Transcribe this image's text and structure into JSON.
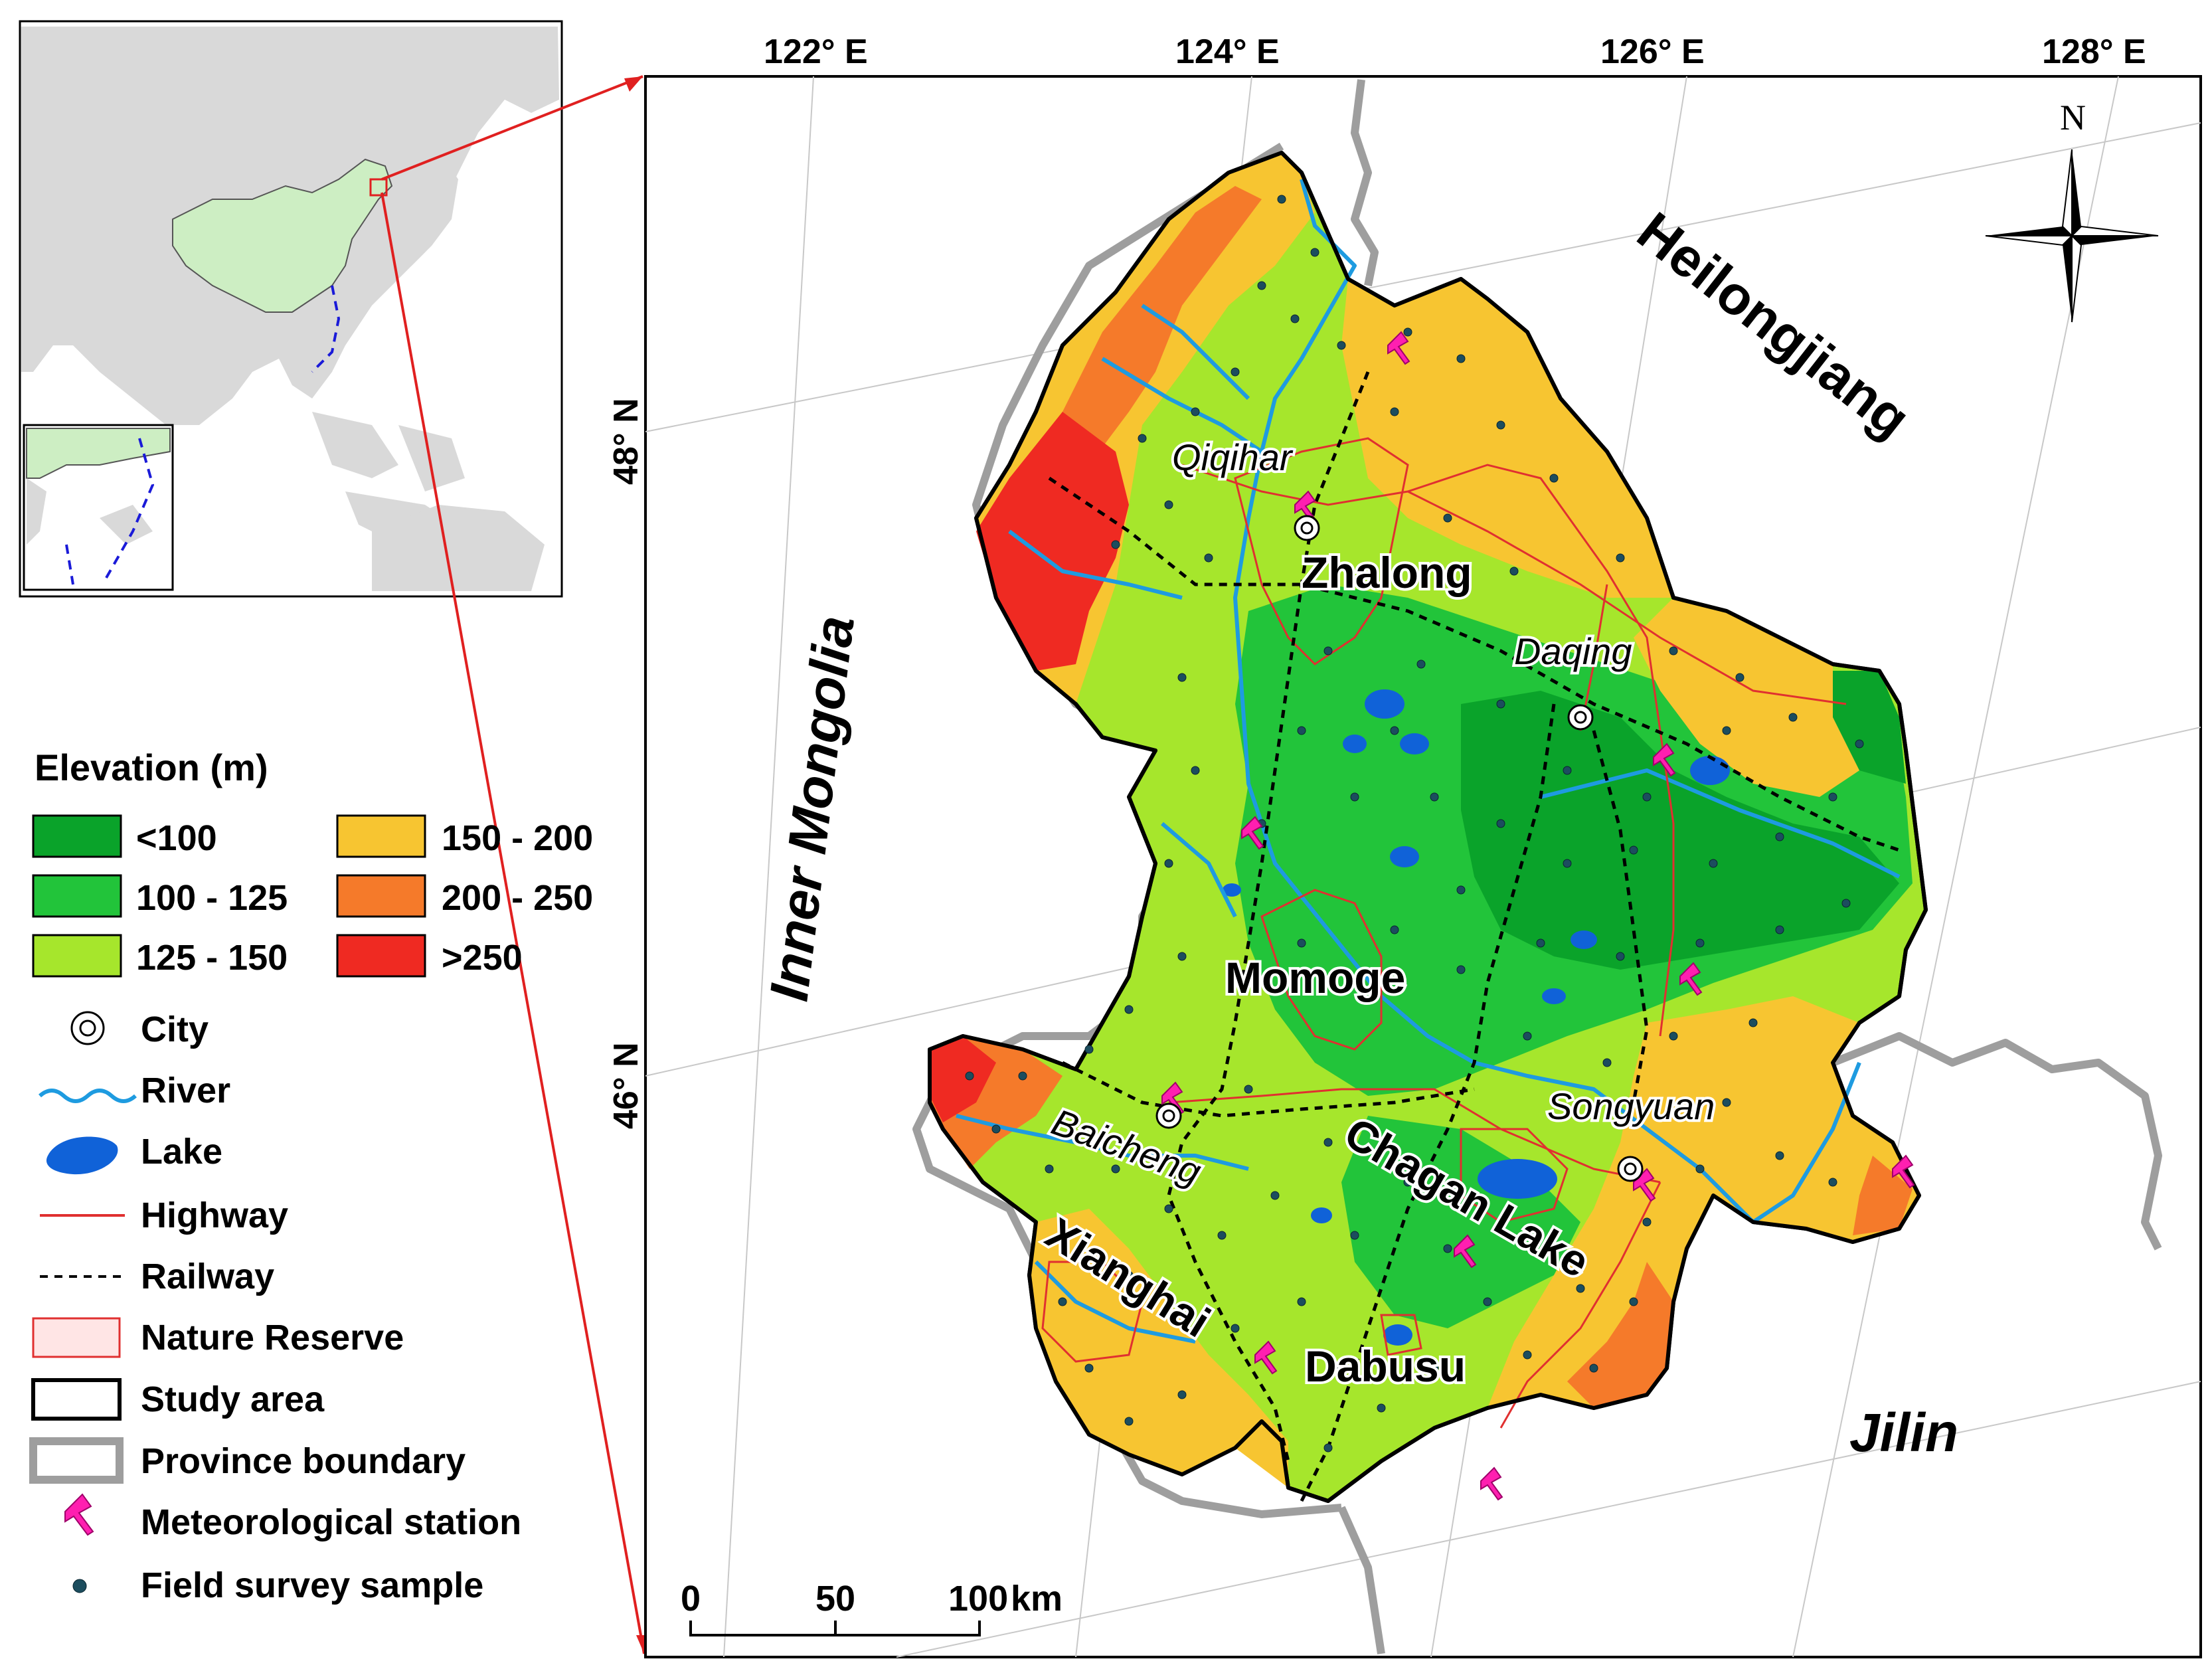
{
  "inset": {
    "region_highlight_color": "#cdeec3",
    "land_color": "#d9d9d9",
    "sea_color": "#ffffff"
  },
  "grid": {
    "longitudes": [
      "122° E",
      "124° E",
      "126° E",
      "128° E"
    ],
    "latitudes": [
      "48° N",
      "46° N"
    ]
  },
  "north_arrow": {
    "label": "N"
  },
  "provinces": {
    "heilongjiang": "Heilongjiang",
    "inner_mongolia": "Inner Mongolia",
    "jilin": "Jilin"
  },
  "cities": {
    "qiqihar": "Qiqihar",
    "daqing": "Daqing",
    "baicheng": "Baicheng",
    "songyuan": "Songyuan"
  },
  "reserves": {
    "zhalong": "Zhalong",
    "momoge": "Momoge",
    "chagan_lake": "Chagan Lake",
    "xianghai": "Xianghai",
    "dabusu": "Dabusu"
  },
  "legend": {
    "title": "Elevation (m)",
    "elevation_classes": [
      {
        "label": "<100",
        "color": "#0aa32a"
      },
      {
        "label": "100 - 125",
        "color": "#22c43a"
      },
      {
        "label": "125 - 150",
        "color": "#a6e62c"
      },
      {
        "label": "150 - 200",
        "color": "#f7c531"
      },
      {
        "label": "200 - 250",
        "color": "#f57a2a"
      },
      {
        "label": ">250",
        "color": "#ef2a22"
      }
    ],
    "symbols": {
      "city": "City",
      "river": "River",
      "lake": "Lake",
      "highway": "Highway",
      "railway": "Railway",
      "nature_reserve": "Nature Reserve",
      "study_area": "Study area",
      "province_boundary": "Province boundary",
      "meteorological_station": "Meteorological station",
      "field_survey_sample": "Field survey sample"
    }
  },
  "scale_bar": {
    "ticks": [
      "0",
      "50",
      "100"
    ],
    "unit": "km"
  },
  "colors": {
    "river": "#1e9be0",
    "lake": "#1062d8",
    "highway": "#e03030",
    "railway": "#000000",
    "study_area": "#000000",
    "province_boundary": "#9e9e9e",
    "station": "#ff1fb0",
    "sample": "#1c4d5e",
    "connector": "#e02020"
  }
}
